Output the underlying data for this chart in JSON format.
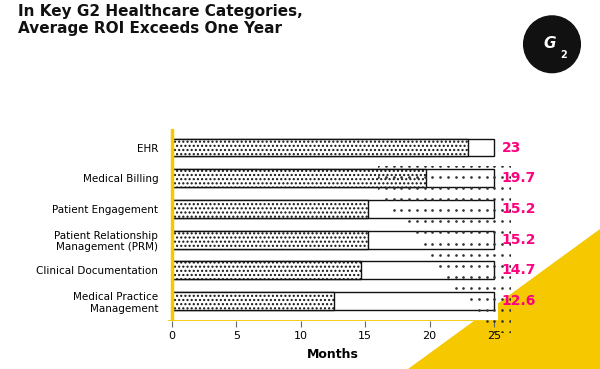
{
  "title_line1": "In Key G2 Healthcare Categories,",
  "title_line2": "Average ROI Exceeds One Year",
  "categories": [
    "EHR",
    "Medical Billing",
    "Patient Engagement",
    "Patient Relationship\nManagement (PRM)",
    "Clinical Documentation",
    "Medical Practice\nManagement"
  ],
  "values": [
    23,
    19.7,
    15.2,
    15.2,
    14.7,
    12.6
  ],
  "xlabel": "Months",
  "xlim_max": 25,
  "xticks": [
    0,
    5,
    10,
    15,
    20,
    25
  ],
  "bar_fill_color": "#ffffff",
  "bar_edge_color": "#111111",
  "value_label_color": "#ff007f",
  "value_label_fontsize": 10,
  "title_fontsize": 11,
  "ylabel_fontsize": 8,
  "xlabel_fontsize": 9,
  "axis_color": "#f5c800",
  "background_color": "#ffffff",
  "dot_color": "#333333",
  "triangle_color": "#f5c800",
  "logo_bg_color": "#111111",
  "logo_text_color": "#ffffff"
}
